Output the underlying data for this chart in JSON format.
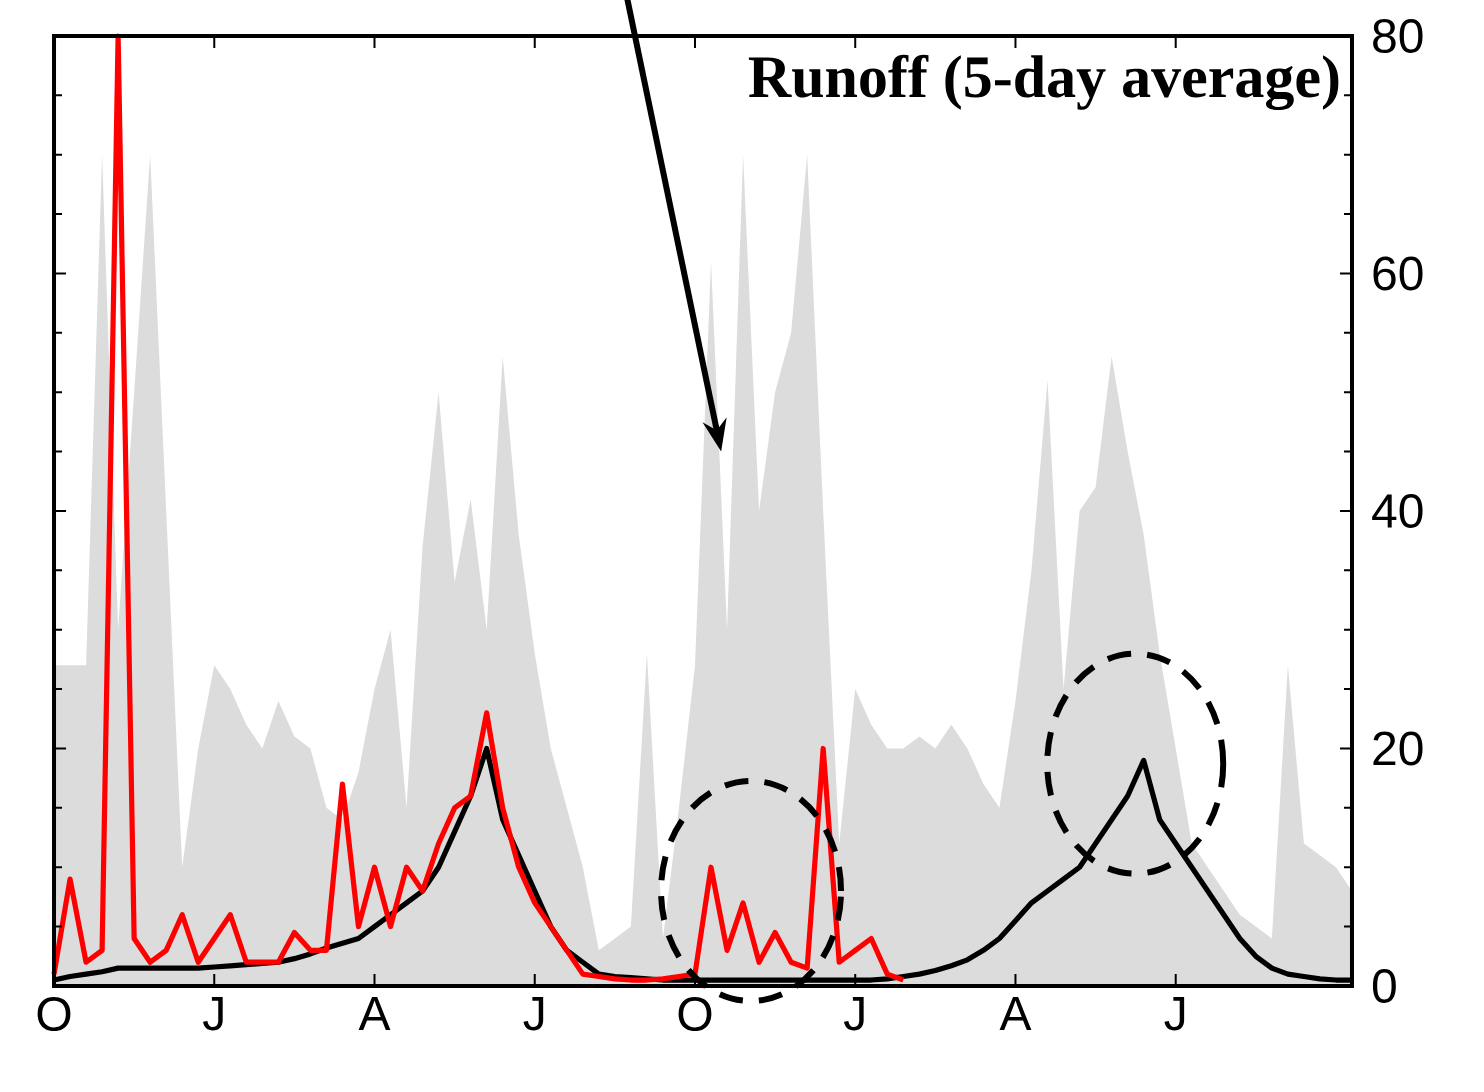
{
  "chart_data": {
    "type": "line",
    "title": "Runoff (5-day average)",
    "ylim": [
      0,
      80
    ],
    "yticks": [
      0,
      20,
      40,
      60,
      80
    ],
    "categories": [
      "O",
      null,
      null,
      null,
      null,
      null,
      null,
      null,
      null,
      null,
      "J",
      null,
      null,
      null,
      null,
      null,
      null,
      null,
      null,
      null,
      "A",
      null,
      null,
      null,
      null,
      null,
      null,
      null,
      null,
      null,
      "J",
      null,
      null,
      null,
      null,
      null,
      null,
      null,
      null,
      null,
      "O",
      null,
      null,
      null,
      null,
      null,
      null,
      null,
      null,
      null,
      "J",
      null,
      null,
      null,
      null,
      null,
      null,
      null,
      null,
      null,
      "A",
      null,
      null,
      null,
      null,
      null,
      null,
      null,
      null,
      null,
      "J",
      null,
      null,
      null,
      null,
      null,
      null,
      null,
      null,
      null,
      null,
      null
    ],
    "series": [
      {
        "type": "area",
        "color": "#dcdcdc",
        "values": [
          27,
          27,
          27,
          70,
          30,
          50,
          70,
          40,
          10,
          20,
          27,
          25,
          22,
          20,
          24,
          21,
          20,
          15,
          14,
          18,
          25,
          30,
          15,
          37,
          50,
          34,
          41,
          30,
          53,
          38,
          28,
          20,
          15,
          10,
          3,
          4,
          5,
          28,
          4,
          15,
          27,
          61,
          30,
          70,
          40,
          50,
          55,
          70,
          40,
          12,
          25,
          22,
          20,
          20,
          21,
          20,
          22,
          20,
          17,
          15,
          24,
          35,
          51,
          25,
          40,
          42,
          53,
          45,
          38,
          28,
          20,
          12,
          10,
          8,
          6,
          5,
          4,
          27,
          12,
          11,
          10,
          8
        ]
      },
      {
        "color": "#000000",
        "values": [
          0.5,
          0.8,
          1,
          1.2,
          1.5,
          1.5,
          1.5,
          1.5,
          1.5,
          1.5,
          1.6,
          1.7,
          1.8,
          1.9,
          2,
          2.3,
          2.7,
          3.2,
          3.6,
          4,
          5,
          6,
          7,
          8,
          10,
          13,
          16,
          20,
          14,
          11,
          8,
          5,
          3,
          2,
          1,
          0.8,
          0.7,
          0.6,
          0.5,
          0.5,
          0.5,
          0.5,
          0.5,
          0.5,
          0.5,
          0.5,
          0.5,
          0.5,
          0.5,
          0.5,
          0.5,
          0.5,
          0.6,
          0.8,
          1,
          1.3,
          1.7,
          2.2,
          3,
          4,
          5.5,
          7,
          8,
          9,
          10,
          12,
          14,
          16,
          19,
          14,
          12,
          10,
          8,
          6,
          4,
          2.5,
          1.5,
          1,
          0.8,
          0.6,
          0.5,
          0.5
        ]
      },
      {
        "color": "#ff0000",
        "values": [
          1,
          9,
          2,
          3,
          80,
          4,
          2,
          3,
          6,
          2,
          4,
          6,
          2,
          2,
          2,
          4.5,
          3,
          3,
          17,
          5,
          10,
          5,
          10,
          8,
          12,
          15,
          16,
          23,
          15,
          10,
          7,
          5,
          3,
          1,
          0.8,
          0.6,
          0.5,
          0.5,
          0.6,
          0.8,
          1,
          10,
          3,
          7,
          2,
          4.5,
          2,
          1.5,
          20,
          2,
          3,
          4,
          1,
          0.5,
          null,
          null,
          null,
          null,
          null,
          null,
          null,
          null,
          null,
          null,
          null,
          null,
          null,
          null,
          null,
          null,
          null,
          null,
          null,
          null,
          null,
          null,
          null,
          null,
          null,
          null,
          null,
          null
        ]
      }
    ]
  }
}
